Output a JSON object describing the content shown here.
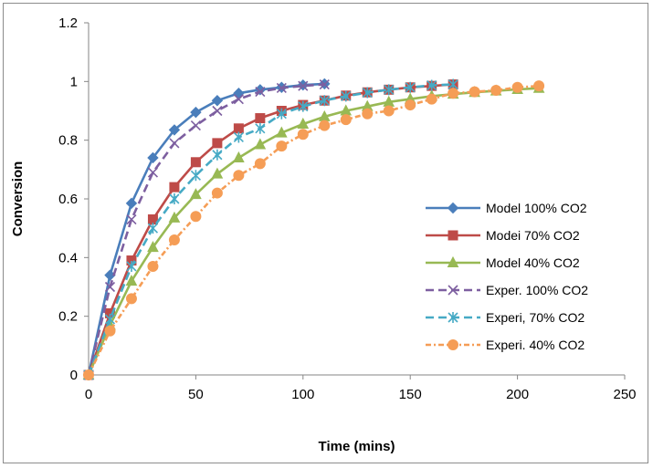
{
  "chart_data": {
    "type": "line",
    "title": "",
    "xlabel": "Time (mins)",
    "ylabel": "Conversion",
    "xlim": [
      0,
      250
    ],
    "ylim": [
      0,
      1.2
    ],
    "x_ticks": [
      0,
      50,
      100,
      150,
      200,
      250
    ],
    "y_ticks": [
      0,
      0.2,
      0.4,
      0.6,
      0.8,
      1,
      1.2
    ],
    "x_tick_labels": [
      "0",
      "50",
      "100",
      "150",
      "200",
      "250"
    ],
    "y_tick_labels": [
      "0",
      "0.2",
      "0.4",
      "0.6",
      "0.8",
      "1",
      "1.2"
    ],
    "grid": false,
    "legend_position": "right",
    "series": [
      {
        "name": "Model 100% CO2",
        "color": "#4a7ebb",
        "marker": "diamond",
        "dash": "solid",
        "x": [
          0,
          10,
          20,
          30,
          40,
          50,
          60,
          70,
          80,
          90,
          100,
          110
        ],
        "y": [
          0,
          0.34,
          0.585,
          0.74,
          0.835,
          0.895,
          0.935,
          0.96,
          0.972,
          0.98,
          0.988,
          0.992
        ]
      },
      {
        "name": "Modei 70% CO2",
        "color": "#be4b48",
        "marker": "square",
        "dash": "solid",
        "x": [
          0,
          10,
          20,
          30,
          40,
          50,
          60,
          70,
          80,
          90,
          100,
          110,
          120,
          130,
          140,
          150,
          160,
          170
        ],
        "y": [
          0,
          0.21,
          0.39,
          0.53,
          0.64,
          0.725,
          0.79,
          0.84,
          0.875,
          0.9,
          0.92,
          0.935,
          0.952,
          0.963,
          0.972,
          0.98,
          0.985,
          0.99
        ]
      },
      {
        "name": "Model  40% CO2",
        "color": "#98b954",
        "marker": "triangle",
        "dash": "solid",
        "x": [
          0,
          10,
          20,
          30,
          40,
          50,
          60,
          70,
          80,
          90,
          100,
          110,
          120,
          130,
          140,
          150,
          160,
          170,
          180,
          190,
          200,
          210
        ],
        "y": [
          0,
          0.17,
          0.32,
          0.435,
          0.535,
          0.615,
          0.685,
          0.74,
          0.785,
          0.825,
          0.855,
          0.88,
          0.9,
          0.915,
          0.93,
          0.94,
          0.95,
          0.957,
          0.963,
          0.968,
          0.973,
          0.977
        ]
      },
      {
        "name": "Exper. 100% CO2",
        "color": "#7d5fa0",
        "marker": "x",
        "dash": "dash",
        "x": [
          0,
          10,
          20,
          30,
          40,
          50,
          60,
          70,
          80,
          90,
          100,
          110
        ],
        "y": [
          0,
          0.3,
          0.53,
          0.69,
          0.79,
          0.85,
          0.9,
          0.94,
          0.965,
          0.978,
          0.985,
          0.99
        ]
      },
      {
        "name": "Experi, 70% CO2",
        "color": "#46aac5",
        "marker": "asterisk",
        "dash": "dash",
        "x": [
          0,
          10,
          20,
          30,
          40,
          50,
          60,
          70,
          80,
          90,
          100,
          110,
          120,
          130,
          140,
          150,
          160,
          170
        ],
        "y": [
          0,
          0.19,
          0.37,
          0.5,
          0.6,
          0.68,
          0.75,
          0.81,
          0.84,
          0.89,
          0.915,
          0.935,
          0.95,
          0.962,
          0.972,
          0.98,
          0.987,
          0.99
        ]
      },
      {
        "name": "Experi. 40% CO2",
        "color": "#f59d56",
        "marker": "circle",
        "dash": "dashdot",
        "x": [
          0,
          10,
          20,
          30,
          40,
          50,
          60,
          70,
          80,
          90,
          100,
          110,
          120,
          130,
          140,
          150,
          160,
          170,
          180,
          190,
          200,
          210
        ],
        "y": [
          0,
          0.15,
          0.26,
          0.37,
          0.46,
          0.54,
          0.62,
          0.68,
          0.72,
          0.78,
          0.82,
          0.85,
          0.87,
          0.89,
          0.9,
          0.92,
          0.94,
          0.96,
          0.965,
          0.97,
          0.98,
          0.985
        ]
      }
    ]
  }
}
